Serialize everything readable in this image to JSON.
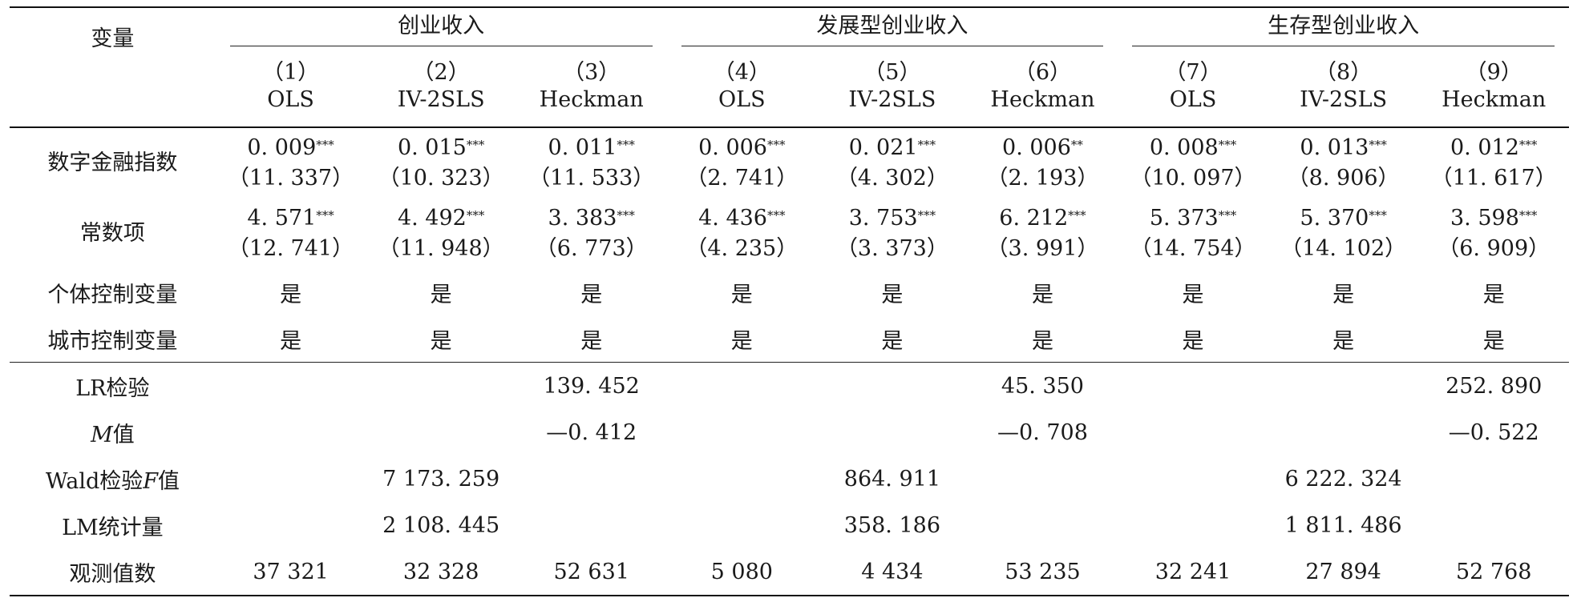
{
  "header": {
    "var_label": "变量",
    "groups": [
      "创业收入",
      "发展型创业收入",
      "生存型创业收入"
    ],
    "models": [
      {
        "num": "（1）",
        "method": "OLS"
      },
      {
        "num": "（2）",
        "method": "IV-2SLS"
      },
      {
        "num": "（3）",
        "method": "Heckman"
      },
      {
        "num": "（4）",
        "method": "OLS"
      },
      {
        "num": "（5）",
        "method": "IV-2SLS"
      },
      {
        "num": "（6）",
        "method": "Heckman"
      },
      {
        "num": "（7）",
        "method": "OLS"
      },
      {
        "num": "（8）",
        "method": "IV-2SLS"
      },
      {
        "num": "（9）",
        "method": "Heckman"
      }
    ]
  },
  "rows": {
    "digital_finance": {
      "label": "数字金融指数",
      "coef": [
        "0. 009",
        "0. 015",
        "0. 011",
        "0. 006",
        "0. 021",
        "0. 006",
        "0. 008",
        "0. 013",
        "0. 012"
      ],
      "stars": [
        "***",
        "***",
        "***",
        "***",
        "***",
        "**",
        "***",
        "***",
        "***"
      ],
      "t": [
        "（11. 337）",
        "（10. 323）",
        "（11. 533）",
        "（2. 741）",
        "（4. 302）",
        "（2. 193）",
        "（10. 097）",
        "（8. 906）",
        "（11. 617）"
      ]
    },
    "constant": {
      "label": "常数项",
      "coef": [
        "4. 571",
        "4. 492",
        "3. 383",
        "4. 436",
        "3. 753",
        "6. 212",
        "5. 373",
        "5. 370",
        "3. 598"
      ],
      "stars": [
        "***",
        "***",
        "***",
        "***",
        "***",
        "***",
        "***",
        "***",
        "***"
      ],
      "t": [
        "（12. 741）",
        "（11. 948）",
        "（6. 773）",
        "（4. 235）",
        "（3. 373）",
        "（3. 991）",
        "（14. 754）",
        "（14. 102）",
        "（6. 909）"
      ]
    },
    "indiv_ctrl": {
      "label": "个体控制变量",
      "values": [
        "是",
        "是",
        "是",
        "是",
        "是",
        "是",
        "是",
        "是",
        "是"
      ]
    },
    "city_ctrl": {
      "label": "城市控制变量",
      "values": [
        "是",
        "是",
        "是",
        "是",
        "是",
        "是",
        "是",
        "是",
        "是"
      ]
    },
    "lr_test": {
      "label_a": "LR",
      "label_b": "检验",
      "values": [
        "",
        "",
        "139. 452",
        "",
        "",
        "45. 350",
        "",
        "",
        "252. 890"
      ]
    },
    "m_value": {
      "label_a": "M",
      "label_b": "值",
      "values": [
        "",
        "",
        "—0. 412",
        "",
        "",
        "—0. 708",
        "",
        "",
        "—0. 522"
      ]
    },
    "wald_f": {
      "label_a": "Wald",
      "label_b": "检验",
      "label_c": "F",
      "label_d": "值",
      "values": [
        "",
        "7 173. 259",
        "",
        "",
        "864. 911",
        "",
        "",
        "6 222. 324",
        ""
      ]
    },
    "lm_stat": {
      "label_a": "LM",
      "label_b": "统计量",
      "values": [
        "",
        "2 108. 445",
        "",
        "",
        "358. 186",
        "",
        "",
        "1 811. 486",
        ""
      ]
    },
    "obs": {
      "label": "观测值数",
      "values": [
        "37 321",
        "32 328",
        "52 631",
        "5 080",
        "4 434",
        "53 235",
        "32 241",
        "27 894",
        "52 768"
      ]
    }
  }
}
